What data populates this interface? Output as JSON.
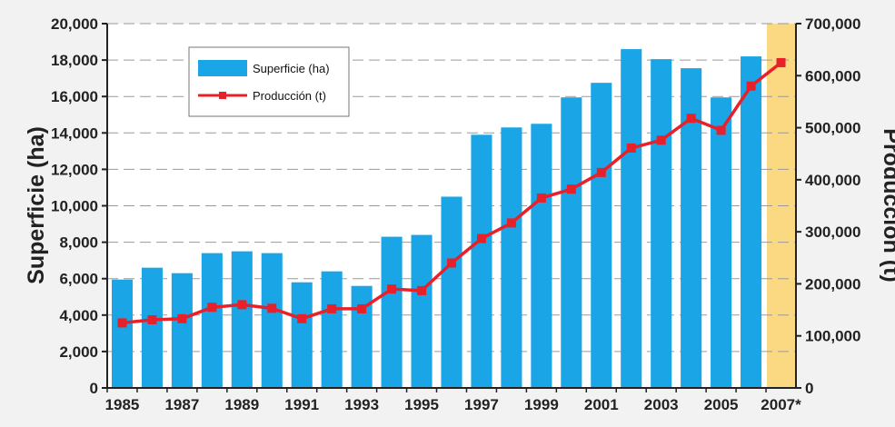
{
  "chart_data": {
    "type": "bar",
    "x": [
      "1985",
      "1986",
      "1987",
      "1988",
      "1989",
      "1990",
      "1991",
      "1992",
      "1993",
      "1994",
      "1995",
      "1996",
      "1997",
      "1998",
      "1999",
      "2000",
      "2001",
      "2002",
      "2003",
      "2004",
      "2005",
      "2006",
      "2007*"
    ],
    "x_tick_labels": [
      "1985",
      "1987",
      "1989",
      "1991",
      "1993",
      "1995",
      "1997",
      "1999",
      "2001",
      "2003",
      "2005",
      "2007*"
    ],
    "series": [
      {
        "name": "Superficie (ha)",
        "type": "bar",
        "axis": "left",
        "color": "#1aa6e6",
        "values": [
          5950,
          6600,
          6300,
          7400,
          7500,
          7400,
          5800,
          6400,
          5600,
          8300,
          8400,
          10500,
          13900,
          14300,
          14500,
          15950,
          16750,
          18600,
          18050,
          17550,
          15950,
          18200,
          18700
        ]
      },
      {
        "name": "Producción (t)",
        "type": "line",
        "axis": "right",
        "color": "#e8202a",
        "values": [
          125000,
          131000,
          133000,
          155000,
          160000,
          153000,
          133000,
          152000,
          152000,
          190000,
          187000,
          240000,
          287000,
          317000,
          365000,
          382000,
          414000,
          461000,
          476000,
          518000,
          495000,
          580000,
          625000
        ]
      }
    ],
    "ylabel": "Superficie (ha)",
    "y2label": "Producción (t)",
    "ylim": [
      0,
      20000
    ],
    "y2lim": [
      0,
      700000
    ],
    "yticks": [
      "0",
      "2,000",
      "4,000",
      "6,000",
      "8,000",
      "10,000",
      "12,000",
      "14,000",
      "16,000",
      "18,000",
      "20,000"
    ],
    "y2ticks": [
      "0",
      "100,000",
      "200,000",
      "300,000",
      "400,000",
      "500,000",
      "600,000",
      "700,000"
    ],
    "grid": true,
    "legend": "top-left",
    "highlight_last_color": "#fbd882"
  }
}
